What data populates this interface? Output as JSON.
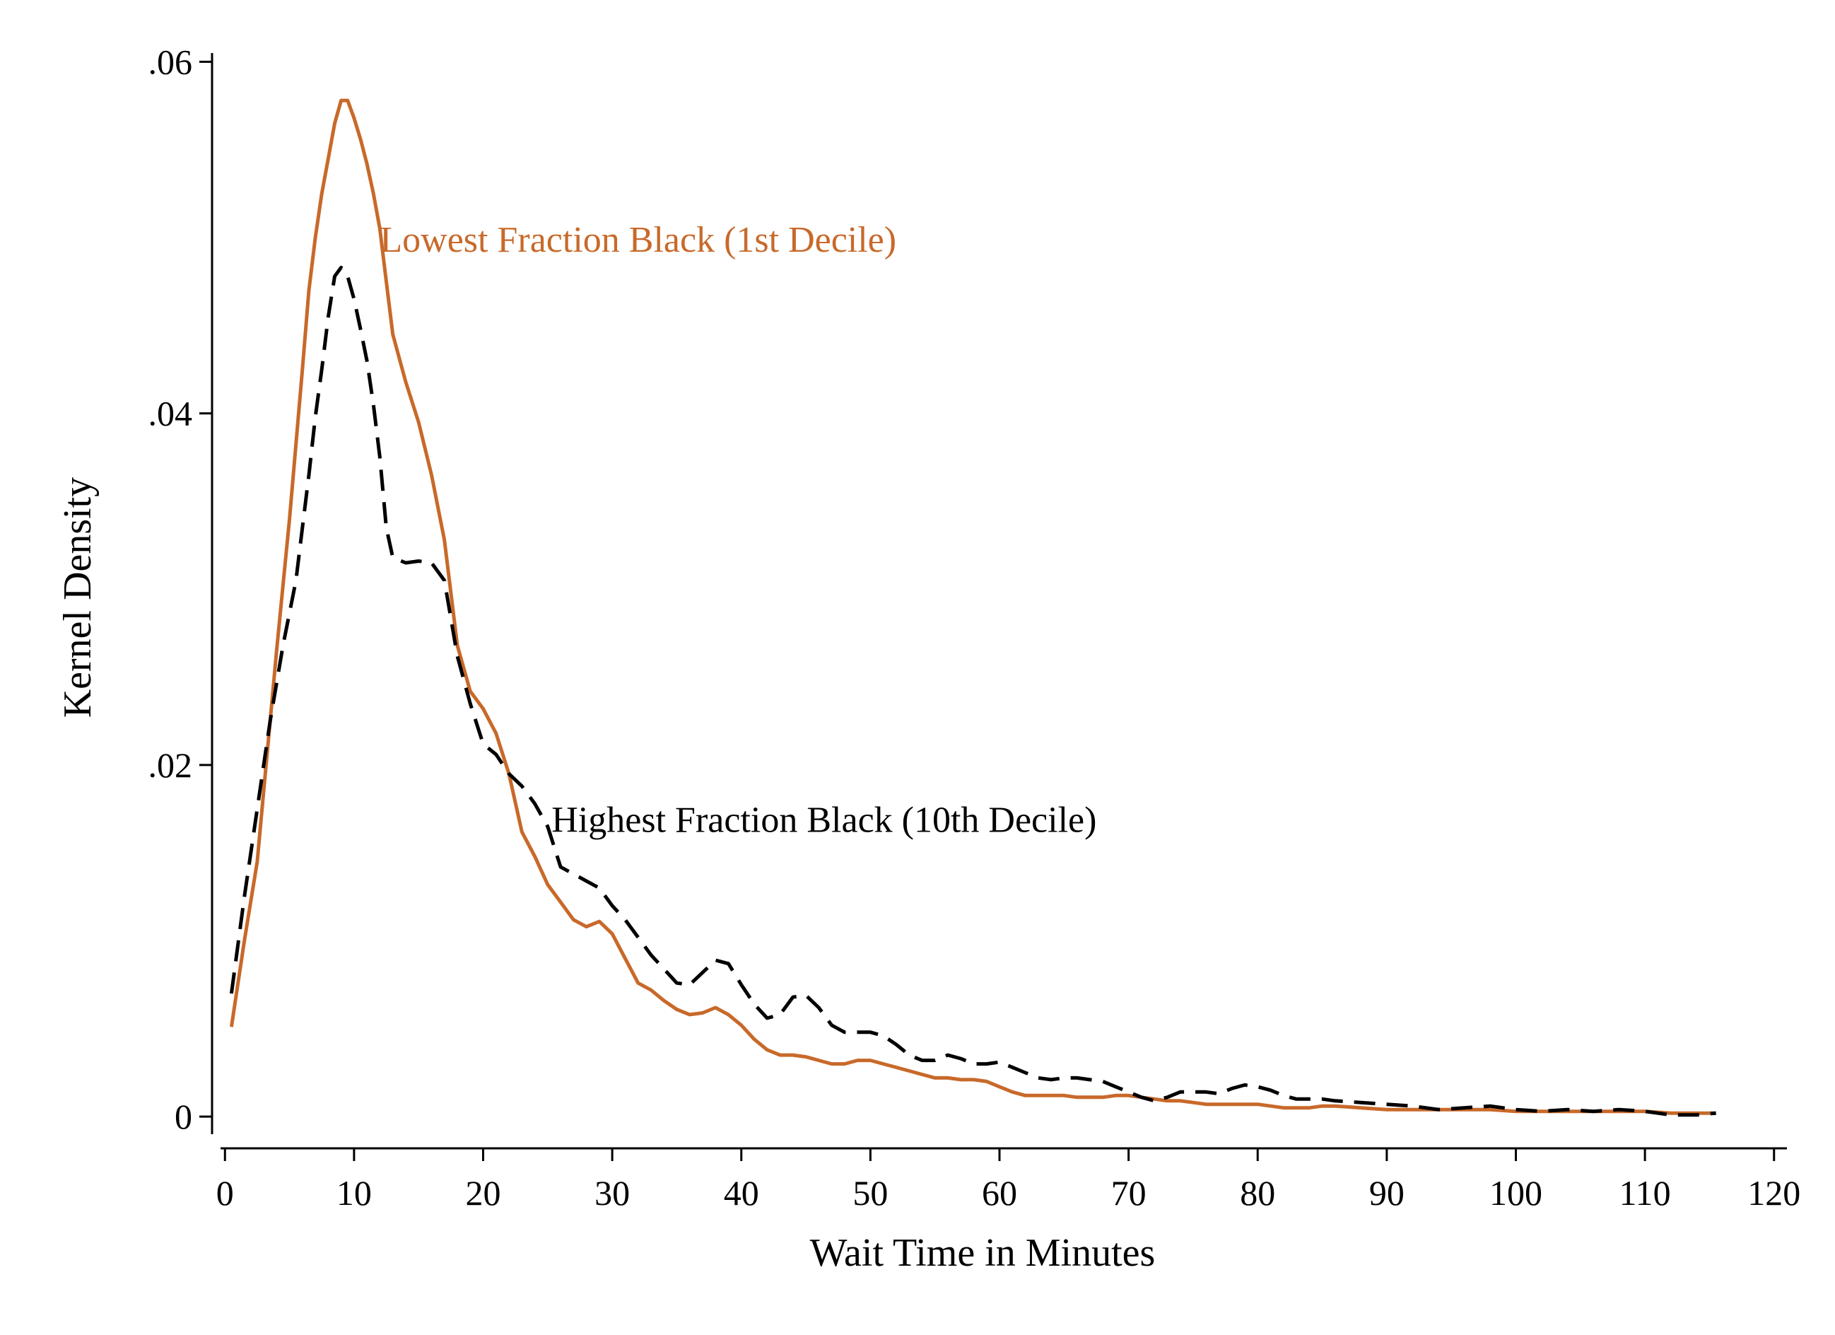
{
  "chart_data": {
    "type": "line",
    "title": "",
    "xlabel": "Wait Time in Minutes",
    "ylabel": "Kernel Density",
    "xlim": [
      -1,
      121
    ],
    "ylim": [
      -0.001,
      0.0605
    ],
    "xticks": [
      0,
      10,
      20,
      30,
      40,
      50,
      60,
      70,
      80,
      90,
      100,
      110,
      120
    ],
    "xtick_labels": [
      "0",
      "10",
      "20",
      "30",
      "40",
      "50",
      "60",
      "70",
      "80",
      "90",
      "100",
      "110",
      "120"
    ],
    "yticks": [
      0,
      0.02,
      0.04,
      0.06
    ],
    "ytick_labels": [
      "0",
      ".02",
      ".04",
      ".06"
    ],
    "grid": false,
    "legend": "none",
    "series": [
      {
        "name": "Lowest Fraction Black (1st Decile)",
        "color": "#c8692a",
        "style": "solid",
        "x": [
          0.5,
          1.5,
          2.5,
          3,
          3.5,
          4,
          5,
          6,
          6.5,
          7,
          7.5,
          8,
          8.5,
          9,
          9.5,
          10,
          10.5,
          11,
          11.5,
          12,
          12.5,
          13,
          14,
          15,
          16,
          17,
          18,
          19,
          20,
          21,
          22,
          23,
          24,
          25,
          26,
          27,
          28,
          29,
          30,
          31,
          32,
          33,
          34,
          35,
          36,
          37,
          38,
          39,
          40,
          41,
          42,
          43,
          44,
          45,
          46,
          47,
          48,
          49,
          50,
          51,
          52,
          53,
          54,
          55,
          56,
          57,
          58,
          59,
          60,
          61,
          62,
          63,
          64,
          65,
          66,
          67,
          68,
          69,
          70,
          71,
          72,
          73,
          74,
          75,
          76,
          77,
          78,
          79,
          80,
          81,
          82,
          83,
          84,
          85,
          86,
          88,
          90,
          92,
          94,
          96,
          98,
          100,
          102,
          104,
          106,
          108,
          110,
          112,
          114,
          115.5
        ],
        "values": [
          0.0051,
          0.01,
          0.0145,
          0.0185,
          0.0225,
          0.0265,
          0.034,
          0.0425,
          0.047,
          0.05,
          0.0525,
          0.0545,
          0.0565,
          0.0578,
          0.0578,
          0.0568,
          0.0556,
          0.0542,
          0.0525,
          0.0505,
          0.0475,
          0.0445,
          0.0418,
          0.0395,
          0.0365,
          0.0328,
          0.0268,
          0.0242,
          0.0232,
          0.0218,
          0.0195,
          0.0162,
          0.0148,
          0.0132,
          0.0122,
          0.0112,
          0.0108,
          0.0111,
          0.0104,
          0.009,
          0.0076,
          0.0072,
          0.0066,
          0.0061,
          0.0058,
          0.0059,
          0.0062,
          0.0058,
          0.0052,
          0.0044,
          0.0038,
          0.0035,
          0.0035,
          0.0034,
          0.0032,
          0.003,
          0.003,
          0.0032,
          0.0032,
          0.003,
          0.0028,
          0.0026,
          0.0024,
          0.0022,
          0.0022,
          0.0021,
          0.0021,
          0.002,
          0.0017,
          0.0014,
          0.0012,
          0.0012,
          0.0012,
          0.0012,
          0.0011,
          0.0011,
          0.0011,
          0.0012,
          0.0012,
          0.0011,
          0.001,
          0.0009,
          0.0009,
          0.0008,
          0.0007,
          0.0007,
          0.0007,
          0.0007,
          0.0007,
          0.0006,
          0.0005,
          0.0005,
          0.0005,
          0.0006,
          0.0006,
          0.0005,
          0.0004,
          0.0004,
          0.0004,
          0.0004,
          0.0004,
          0.0003,
          0.0003,
          0.0003,
          0.0003,
          0.0003,
          0.0003,
          0.0002,
          0.0002,
          0.0002
        ]
      },
      {
        "name": "Highest Fraction Black (10th Decile)",
        "color": "#000000",
        "style": "dashed",
        "x": [
          0.5,
          1.5,
          2.5,
          3.5,
          4.5,
          5.5,
          6,
          6.5,
          7,
          7.5,
          8,
          8.5,
          9,
          9.5,
          10,
          10.5,
          11,
          11.5,
          12,
          12.5,
          13,
          14,
          15,
          16,
          17,
          18,
          19,
          20,
          21,
          22,
          23,
          24,
          25,
          26,
          27,
          28,
          29,
          30,
          31,
          32,
          33,
          34,
          35,
          36,
          37,
          38,
          39,
          40,
          41,
          42,
          43,
          44,
          45,
          46,
          47,
          48,
          49,
          50,
          51,
          52,
          53,
          54,
          55,
          56,
          57,
          58,
          59,
          60,
          61,
          62,
          63,
          64,
          65,
          66,
          67,
          68,
          69,
          70,
          71,
          72,
          73,
          74,
          75,
          76,
          77,
          78,
          79,
          80,
          81,
          82,
          83,
          84,
          85,
          86,
          88,
          90,
          92,
          94,
          96,
          98,
          100,
          102,
          104,
          106,
          108,
          110,
          112,
          114,
          115.5
        ],
        "values": [
          0.007,
          0.0125,
          0.0175,
          0.0225,
          0.0268,
          0.0305,
          0.0335,
          0.0365,
          0.0398,
          0.0425,
          0.0455,
          0.0478,
          0.0483,
          0.0478,
          0.0465,
          0.0448,
          0.043,
          0.0405,
          0.0375,
          0.0335,
          0.0318,
          0.0315,
          0.0316,
          0.0315,
          0.0305,
          0.0262,
          0.0235,
          0.0212,
          0.0206,
          0.0195,
          0.0188,
          0.0178,
          0.0165,
          0.0142,
          0.0138,
          0.0134,
          0.013,
          0.012,
          0.0112,
          0.0102,
          0.0092,
          0.0084,
          0.0076,
          0.0075,
          0.0082,
          0.0089,
          0.0087,
          0.0075,
          0.0064,
          0.0056,
          0.0058,
          0.0068,
          0.0069,
          0.0062,
          0.0052,
          0.0048,
          0.0048,
          0.0048,
          0.0046,
          0.0041,
          0.0035,
          0.0032,
          0.0032,
          0.0035,
          0.0033,
          0.003,
          0.003,
          0.0031,
          0.0028,
          0.0025,
          0.0022,
          0.0021,
          0.0022,
          0.0022,
          0.0021,
          0.002,
          0.0017,
          0.0014,
          0.0011,
          0.0009,
          0.0011,
          0.0014,
          0.0014,
          0.0014,
          0.0013,
          0.0016,
          0.0018,
          0.0017,
          0.0015,
          0.0012,
          0.001,
          0.001,
          0.001,
          0.0009,
          0.0008,
          0.0007,
          0.0006,
          0.0004,
          0.0005,
          0.0006,
          0.0004,
          0.0003,
          0.0004,
          0.0003,
          0.0004,
          0.0003,
          0.0001,
          0.0001,
          0.0002
        ]
      }
    ],
    "annotations": [
      {
        "text": "Lowest Fraction Black (1st Decile)",
        "x": 12,
        "y": 0.0492,
        "color": "#c8692a"
      },
      {
        "text": "Highest Fraction Black (10th Decile)",
        "x": 25.3,
        "y": 0.0162,
        "color": "#000000"
      }
    ]
  }
}
